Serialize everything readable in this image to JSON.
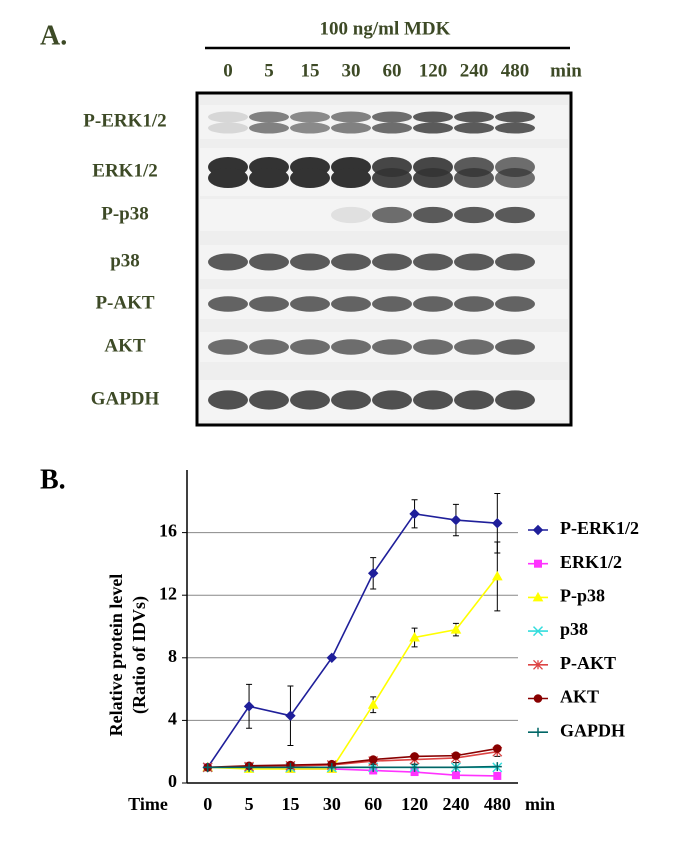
{
  "panel_a": {
    "label": "A.",
    "treatment": "100 ng/ml MDK",
    "times": [
      "0",
      "5",
      "15",
      "30",
      "60",
      "120",
      "240",
      "480"
    ],
    "time_unit": "min",
    "rows": [
      "P-ERK1/2",
      "ERK1/2",
      "P-p38",
      "p38",
      "P-AKT",
      "AKT",
      "GAPDH"
    ]
  },
  "chart_data": {
    "type": "line",
    "panel_label": "B.",
    "y_label": [
      "Relative protein level",
      "(Ratio of IDVs)"
    ],
    "x_label": "Time",
    "x_unit": "min",
    "categories": [
      "0",
      "5",
      "15",
      "30",
      "60",
      "120",
      "240",
      "480"
    ],
    "series": [
      {
        "name": "P-ERK1/2",
        "color": "#1f1f9a",
        "marker": "diamond",
        "values": [
          1,
          4.9,
          4.3,
          8.0,
          13.4,
          17.2,
          16.8,
          16.6
        ],
        "errors": [
          0,
          1.4,
          1.9,
          0.1,
          1.0,
          0.9,
          1.0,
          1.9
        ]
      },
      {
        "name": "ERK1/2",
        "color": "#ff33ff",
        "marker": "square",
        "values": [
          1,
          0.95,
          0.9,
          0.9,
          0.8,
          0.7,
          0.5,
          0.45
        ]
      },
      {
        "name": "P-p38",
        "color": "#ffff00",
        "marker": "triangle",
        "values": [
          1,
          0.9,
          0.9,
          0.9,
          5.0,
          9.3,
          9.8,
          13.2
        ],
        "errors": [
          0,
          0,
          0,
          0,
          0.5,
          0.6,
          0.4,
          2.2
        ]
      },
      {
        "name": "p38",
        "color": "#33dddd",
        "marker": "x",
        "values": [
          1,
          1,
          1,
          1,
          1,
          1,
          1,
          1
        ]
      },
      {
        "name": "P-AKT",
        "color": "#dd4444",
        "marker": "star",
        "values": [
          1,
          1.05,
          1.1,
          1.15,
          1.4,
          1.5,
          1.6,
          2.0
        ],
        "errors": [
          0,
          0.1,
          0.1,
          0.1,
          0.2,
          0.3,
          0.3,
          0.3
        ]
      },
      {
        "name": "AKT",
        "color": "#880000",
        "marker": "circle",
        "values": [
          1,
          1.1,
          1.15,
          1.2,
          1.5,
          1.7,
          1.75,
          2.2
        ]
      },
      {
        "name": "GAPDH",
        "color": "#006666",
        "marker": "plus",
        "values": [
          1,
          1,
          1,
          1,
          1,
          1,
          1,
          1.05
        ]
      }
    ],
    "ylim": [
      0,
      20
    ],
    "yticks": [
      0,
      4,
      8,
      12,
      16
    ],
    "grid": true,
    "legend": "right"
  }
}
